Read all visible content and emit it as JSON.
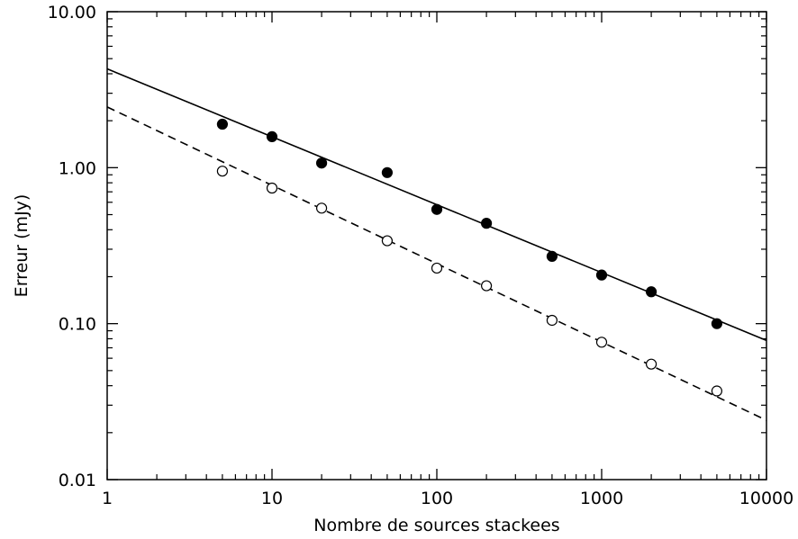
{
  "chart_data": {
    "type": "scatter",
    "title": "",
    "xlabel": "Nombre de sources stackees",
    "ylabel": "Erreur (mJy)",
    "xscale": "log",
    "yscale": "log",
    "xlim": [
      1,
      10000
    ],
    "ylim": [
      0.01,
      10
    ],
    "grid": false,
    "legend": "none",
    "x_ticks": [
      {
        "value": 1,
        "label": "1"
      },
      {
        "value": 10,
        "label": "10"
      },
      {
        "value": 100,
        "label": "100"
      },
      {
        "value": 1000,
        "label": "1000"
      },
      {
        "value": 10000,
        "label": "10000"
      }
    ],
    "y_ticks": [
      {
        "value": 0.01,
        "label": "0.01"
      },
      {
        "value": 0.1,
        "label": "0.10"
      },
      {
        "value": 1,
        "label": "1.00"
      },
      {
        "value": 10,
        "label": "10.00"
      }
    ],
    "series": [
      {
        "marker": "filled-circle",
        "color": "#000000",
        "x": [
          5,
          10,
          20,
          50,
          100,
          200,
          500,
          1000,
          2000,
          5000
        ],
        "y": [
          1.9,
          1.58,
          1.07,
          0.93,
          0.54,
          0.44,
          0.27,
          0.205,
          0.16,
          0.1
        ]
      },
      {
        "marker": "open-circle",
        "color": "#000000",
        "x": [
          5,
          10,
          20,
          50,
          100,
          200,
          500,
          1000,
          2000,
          5000
        ],
        "y": [
          0.95,
          0.74,
          0.55,
          0.34,
          0.227,
          0.175,
          0.105,
          0.076,
          0.055,
          0.037
        ]
      }
    ],
    "fit_lines": [
      {
        "style": "solid",
        "color": "#000000",
        "x": [
          1,
          10000
        ],
        "y": [
          4.3,
          0.078
        ]
      },
      {
        "style": "dashed",
        "color": "#000000",
        "x": [
          1,
          10000
        ],
        "y": [
          2.45,
          0.024
        ]
      }
    ]
  }
}
